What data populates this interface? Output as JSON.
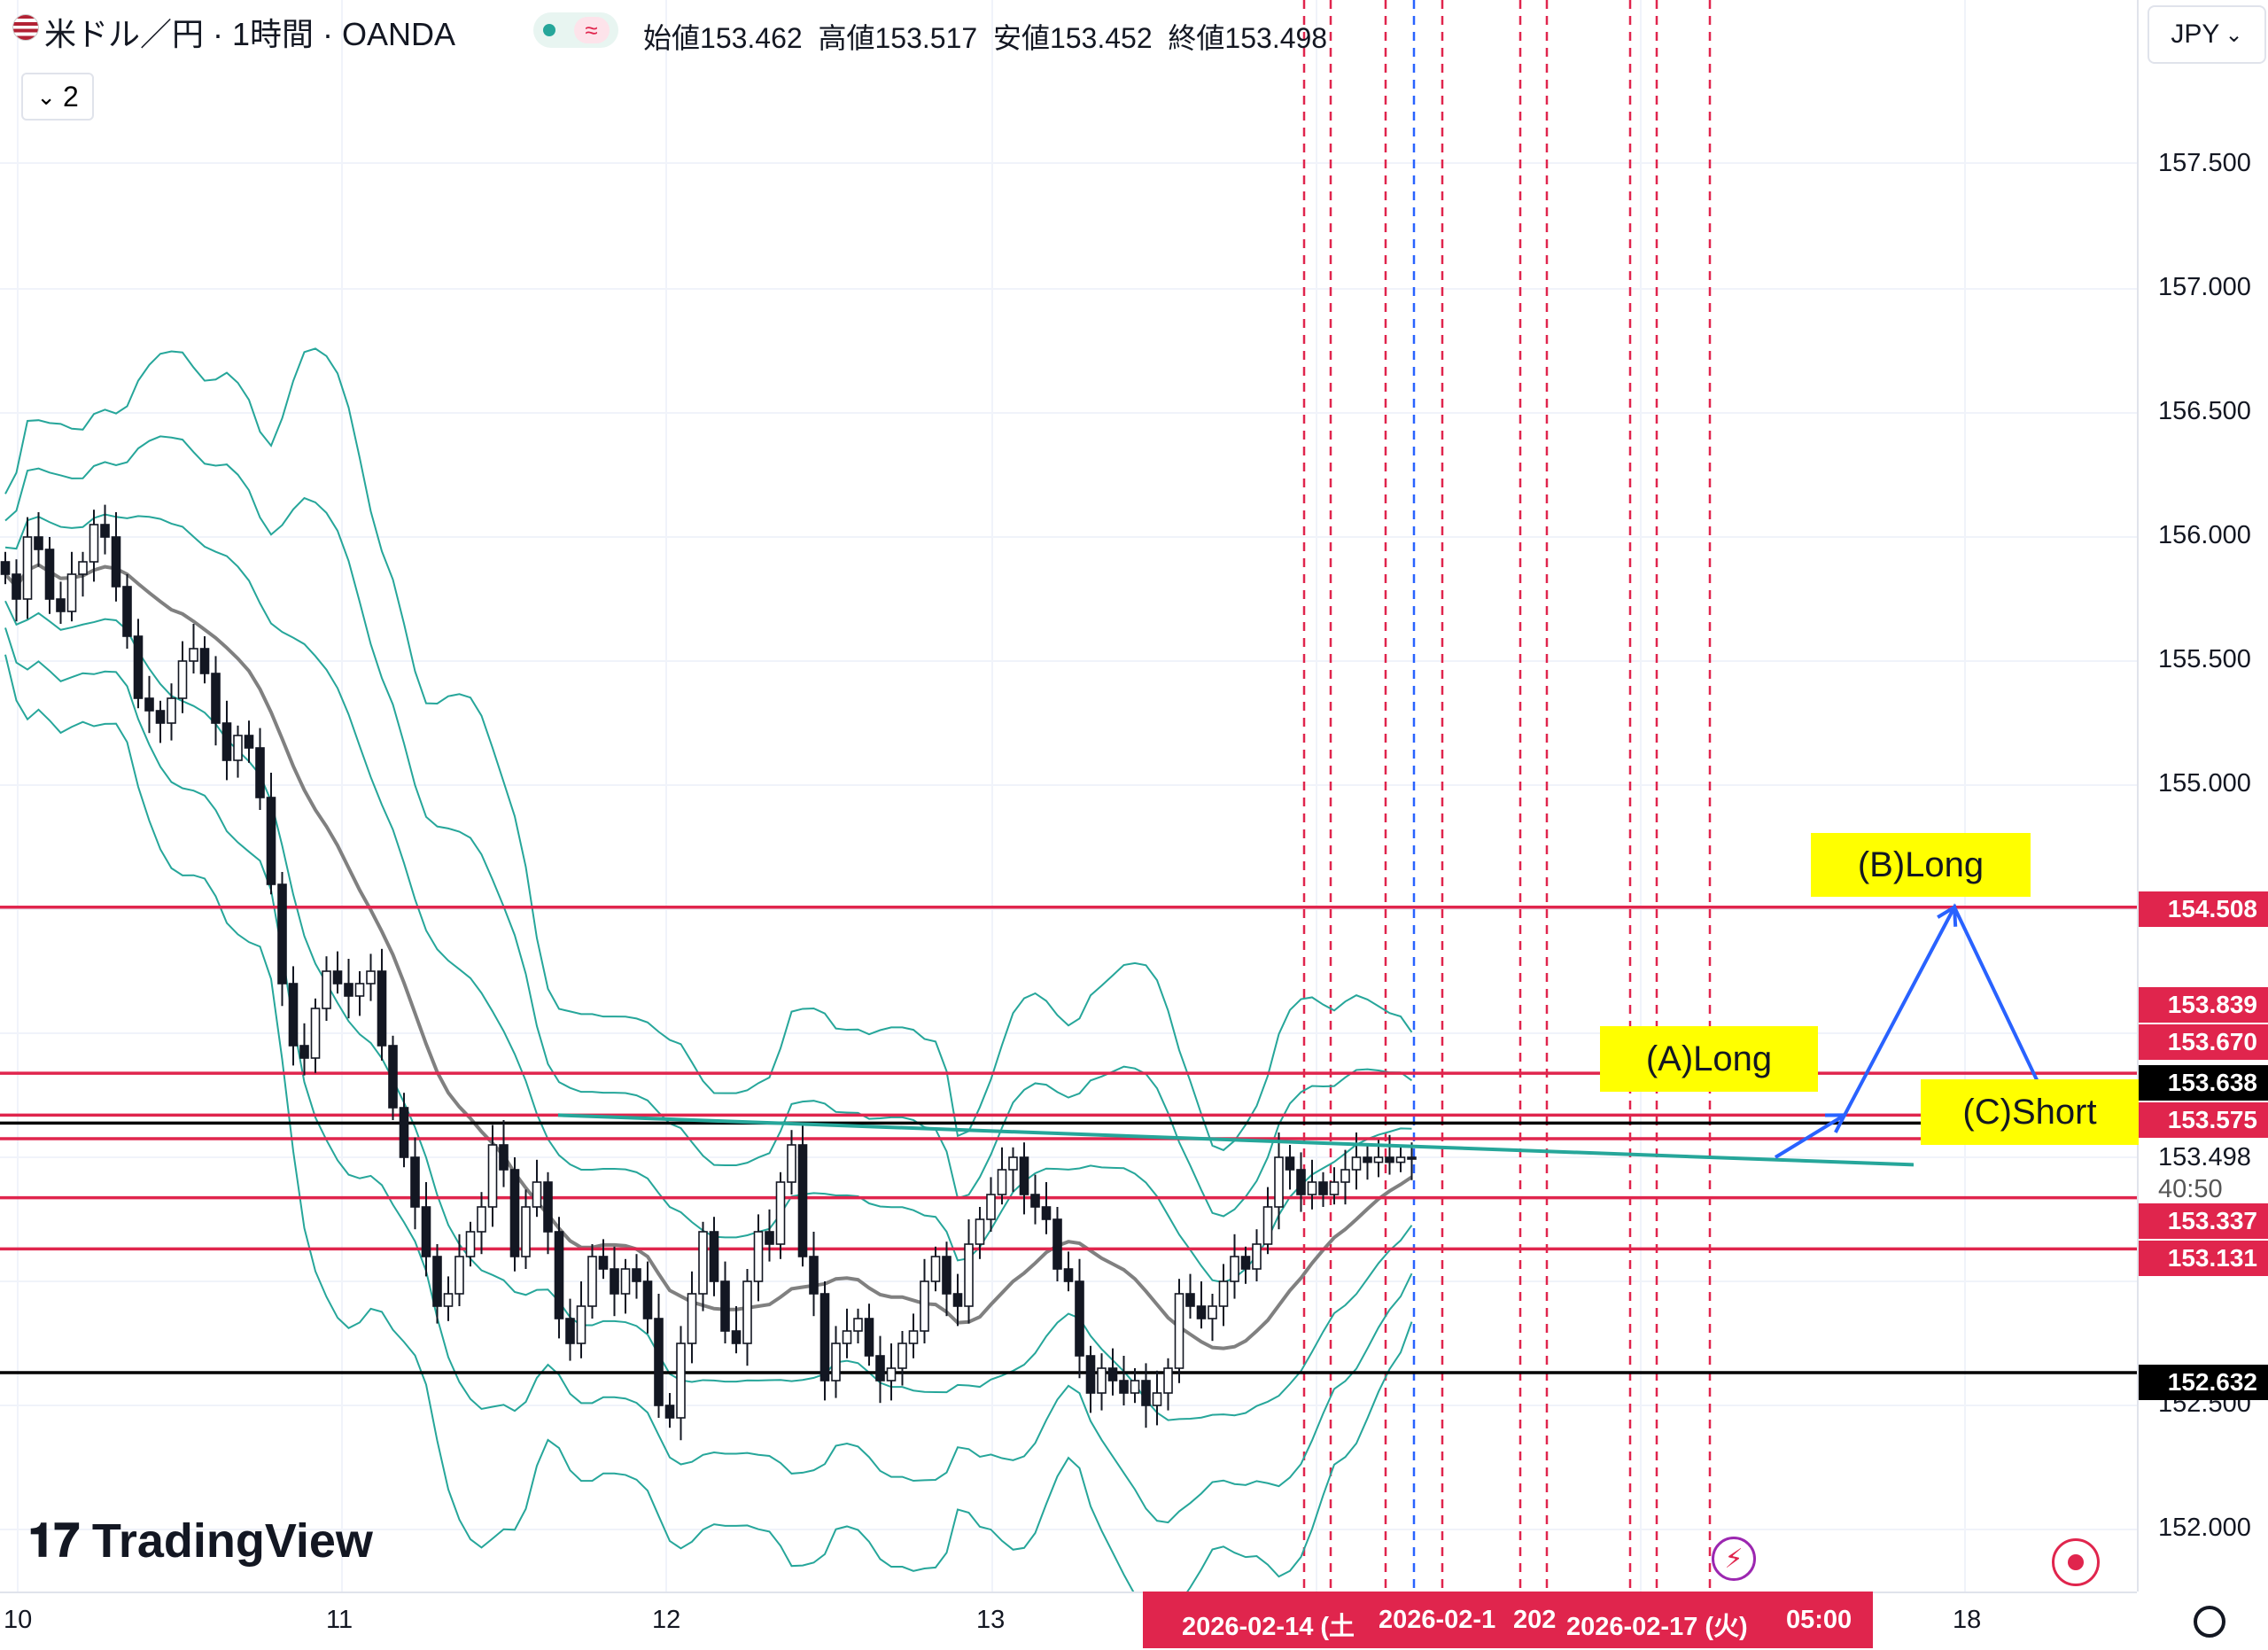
{
  "header": {
    "symbol_title": "米ドル／円 · 1時間 · OANDA",
    "open_label": "始値",
    "open_value": "153.462",
    "high_label": "高値",
    "high_value": "153.517",
    "low_label": "安値",
    "low_value": "153.452",
    "close_label": "終値",
    "close_value": "153.498",
    "legend_toggle": "2",
    "currency": "JPY"
  },
  "colors": {
    "up": "#ffffff",
    "down": "#131722",
    "band": "#26a69a",
    "ma": "#808080",
    "level_red": "#e0254d",
    "level_black": "#000000",
    "trend": "#26a69a",
    "arrow": "#2962ff",
    "vline_red": "#e0254d",
    "vline_blue": "#2962ff",
    "annotation_bg": "#ffff00"
  },
  "price_axis": {
    "ticks": [
      "157.500",
      "157.000",
      "156.500",
      "156.000",
      "155.500",
      "155.000",
      "152.500",
      "152.000"
    ],
    "tags": [
      {
        "value": "154.508",
        "color": "#e0254d"
      },
      {
        "value": "153.839",
        "color": "#e0254d"
      },
      {
        "value": "153.670",
        "color": "#e0254d"
      },
      {
        "value": "153.638",
        "color": "#000000"
      },
      {
        "value": "153.575",
        "color": "#e0254d"
      },
      {
        "value": "153.337",
        "color": "#e0254d"
      },
      {
        "value": "153.131",
        "color": "#e0254d"
      },
      {
        "value": "152.632",
        "color": "#000000"
      }
    ],
    "last_price": "153.498",
    "countdown": "40:50"
  },
  "time_axis": {
    "labels": [
      "10",
      "11",
      "12",
      "13",
      "18"
    ],
    "highlight_segments": [
      "2026-02-14 (土",
      "2026-02-1",
      "202",
      "2026-02-17 (火)",
      "05:00"
    ]
  },
  "annotations": {
    "a": "(A)Long",
    "b": "(B)Long",
    "c": "(C)Short"
  },
  "logo": "TradingView",
  "chart_data": {
    "type": "candlestick",
    "title": "米ドル／円 · 1時間 · OANDA",
    "yrange": [
      151.8,
      158.0
    ],
    "y_ticks": [
      152.0,
      152.5,
      155.0,
      155.5,
      156.0,
      156.5,
      157.0,
      157.5
    ],
    "x_day_labels": [
      "10",
      "11",
      "12",
      "13",
      "18"
    ],
    "grid": true,
    "ohlc_last": {
      "open": 153.462,
      "high": 153.517,
      "low": 153.452,
      "close": 153.498
    },
    "horizontal_levels": [
      {
        "price": 154.508,
        "color": "red"
      },
      {
        "price": 153.839,
        "color": "red"
      },
      {
        "price": 153.67,
        "color": "red"
      },
      {
        "price": 153.638,
        "color": "black"
      },
      {
        "price": 153.575,
        "color": "red"
      },
      {
        "price": 153.337,
        "color": "red"
      },
      {
        "price": 153.131,
        "color": "red"
      },
      {
        "price": 152.632,
        "color": "black"
      }
    ],
    "close_series": [
      155.85,
      155.75,
      156.0,
      155.95,
      155.75,
      155.7,
      155.85,
      155.9,
      156.05,
      156.0,
      155.8,
      155.6,
      155.35,
      155.3,
      155.25,
      155.35,
      155.5,
      155.55,
      155.45,
      155.25,
      155.1,
      155.2,
      155.15,
      154.95,
      154.6,
      154.2,
      153.95,
      153.9,
      154.1,
      154.25,
      154.2,
      154.15,
      154.2,
      154.25,
      153.95,
      153.7,
      153.5,
      153.3,
      153.1,
      152.9,
      152.95,
      153.1,
      153.2,
      153.3,
      153.55,
      153.45,
      153.1,
      153.3,
      153.4,
      153.2,
      152.85,
      152.75,
      152.9,
      153.1,
      153.05,
      152.95,
      153.05,
      153.0,
      152.85,
      152.5,
      152.45,
      152.75,
      152.95,
      153.2,
      153.0,
      152.8,
      152.75,
      153.0,
      153.2,
      153.15,
      153.4,
      153.55,
      153.1,
      152.95,
      152.6,
      152.75,
      152.8,
      152.85,
      152.7,
      152.6,
      152.65,
      152.75,
      152.8,
      153.0,
      153.1,
      152.95,
      152.9,
      153.15,
      153.25,
      153.35,
      153.45,
      153.5,
      153.35,
      153.3,
      153.25,
      153.05,
      153.0,
      152.7,
      152.55,
      152.65,
      152.6,
      152.55,
      152.6,
      152.5,
      152.55,
      152.65,
      152.95,
      152.9,
      152.85,
      152.9,
      153.0,
      153.1,
      153.05,
      153.15,
      153.3,
      153.5,
      153.45,
      153.35,
      153.4,
      153.35,
      153.4,
      153.45,
      153.5,
      153.48,
      153.5,
      153.48,
      153.5,
      153.498
    ],
    "trendline": {
      "from_price": 153.67,
      "to_price": 153.47
    },
    "projection_path": [
      153.5,
      153.67,
      154.508,
      153.67
    ],
    "annotations": [
      "(A)Long",
      "(B)Long",
      "(C)Short"
    ]
  }
}
